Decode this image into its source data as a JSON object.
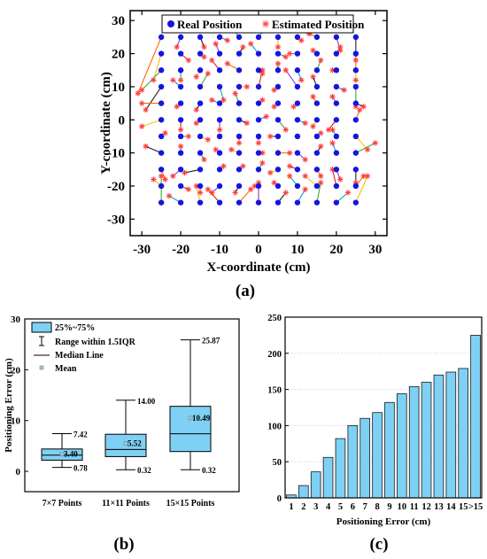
{
  "chart_data": [
    {
      "id": "a",
      "type": "scatter",
      "panel_label": "(a)",
      "xlabel": "X-coordinate (cm)",
      "ylabel": "Y-coordinate (cm)",
      "xlim": [
        -33,
        33
      ],
      "ylim": [
        -35,
        33
      ],
      "xticks": [
        -30,
        -20,
        -10,
        0,
        10,
        20,
        30
      ],
      "yticks": [
        -30,
        -20,
        -10,
        0,
        10,
        20,
        30
      ],
      "legend": {
        "placement": "top-center",
        "entries": [
          "Real Position",
          "Estimated Position"
        ]
      },
      "grid": {
        "start": -25,
        "end": 25,
        "step": 5
      },
      "colors": {
        "real": "#1515e0",
        "estimated": "#ff3b3b",
        "axes": "#000000"
      },
      "line_colors": [
        "#ff6a00",
        "#1f8fe0",
        "#f5c400",
        "#8a3cc8",
        "#3faa3a",
        "#e02020",
        "#202020",
        "#00b0b0"
      ],
      "series": [
        {
          "name": "Real Position",
          "x": [
            -25,
            -20,
            -15,
            -10,
            -5,
            0,
            5,
            10,
            15,
            20,
            25,
            -25,
            -20,
            -15,
            -10,
            -5,
            0,
            5,
            10,
            15,
            20,
            25,
            -25,
            -20,
            -15,
            -10,
            -5,
            0,
            5,
            10,
            15,
            20,
            25,
            -25,
            -20,
            -15,
            -10,
            -5,
            0,
            5,
            10,
            15,
            20,
            25,
            -25,
            -20,
            -15,
            -10,
            -5,
            0,
            5,
            10,
            15,
            20,
            25,
            -25,
            -20,
            -15,
            -10,
            -5,
            0,
            5,
            10,
            15,
            20,
            25,
            -25,
            -20,
            -15,
            -10,
            -5,
            0,
            5,
            10,
            15,
            20,
            25,
            -25,
            -20,
            -15,
            -10,
            -5,
            0,
            5,
            10,
            15,
            20,
            25,
            -25,
            -20,
            -15,
            -10,
            -5,
            0,
            5,
            10,
            15,
            20,
            25,
            -25,
            -20,
            -15,
            -10,
            -5,
            0,
            5,
            10,
            15,
            20,
            25,
            -25,
            -20,
            -15,
            -10,
            -5,
            0,
            5,
            10,
            15,
            20,
            25
          ],
          "y": [
            25,
            25,
            25,
            25,
            25,
            25,
            25,
            25,
            25,
            25,
            25,
            20,
            20,
            20,
            20,
            20,
            20,
            20,
            20,
            20,
            20,
            20,
            15,
            15,
            15,
            15,
            15,
            15,
            15,
            15,
            15,
            15,
            15,
            10,
            10,
            10,
            10,
            10,
            10,
            10,
            10,
            10,
            10,
            10,
            5,
            5,
            5,
            5,
            5,
            5,
            5,
            5,
            5,
            5,
            5,
            0,
            0,
            0,
            0,
            0,
            0,
            0,
            0,
            0,
            0,
            0,
            -5,
            -5,
            -5,
            -5,
            -5,
            -5,
            -5,
            -5,
            -5,
            -5,
            -5,
            -10,
            -10,
            -10,
            -10,
            -10,
            -10,
            -10,
            -10,
            -10,
            -10,
            -10,
            -15,
            -15,
            -15,
            -15,
            -15,
            -15,
            -15,
            -15,
            -15,
            -15,
            -15,
            -20,
            -20,
            -20,
            -20,
            -20,
            -20,
            -20,
            -20,
            -20,
            -20,
            -20,
            -25,
            -25,
            -25,
            -25,
            -25,
            -25,
            -25,
            -25,
            -25,
            -25,
            -25
          ]
        },
        {
          "name": "Estimated Position",
          "x": [
            -31,
            -21,
            -14,
            -8,
            -7,
            2,
            5,
            11,
            13,
            21,
            25,
            -27,
            -18,
            -14,
            -11,
            -4,
            -2,
            7,
            8,
            14,
            21,
            25,
            -30,
            -20,
            -16,
            -12,
            -8,
            1,
            5,
            11,
            16,
            19,
            25,
            -29,
            -22,
            -13,
            -9,
            -3,
            1,
            4,
            7,
            14,
            22,
            25,
            -30,
            -21,
            -16,
            -12,
            -6,
            1,
            4,
            9,
            14,
            19,
            27,
            -30,
            -20,
            -16,
            -10,
            -3,
            2,
            7,
            12,
            14,
            18,
            26,
            -24,
            -18,
            -13,
            -10,
            -5,
            0,
            3,
            10,
            16,
            19,
            28,
            -29,
            -20,
            -14,
            -11,
            -7,
            1,
            8,
            12,
            16,
            19,
            30,
            -24,
            -22,
            -19,
            -9,
            -4,
            1,
            3,
            8,
            16,
            21,
            25,
            -27,
            -18,
            -15,
            -12,
            -6,
            -1,
            4,
            8,
            12,
            19,
            27,
            -25,
            -23,
            -16,
            -13,
            -2,
            0,
            7,
            12,
            16,
            23,
            28
          ],
          "y": [
            8,
            22,
            22,
            24,
            28,
            28,
            22,
            24,
            26,
            21,
            18,
            12,
            18,
            19,
            23,
            22,
            23,
            19,
            20,
            21,
            22,
            15,
            9,
            12,
            13,
            18,
            17,
            14,
            17,
            12,
            18,
            15,
            12,
            3,
            12,
            14,
            6,
            10,
            15,
            9,
            15,
            13,
            9,
            4,
            5,
            4,
            3,
            6,
            8,
            6,
            4,
            4,
            7,
            7,
            4,
            -2,
            -3,
            -1,
            -3,
            -1,
            1,
            -3,
            -1,
            -2,
            -3,
            3,
            -4,
            -5,
            -6,
            -5,
            -7,
            -7,
            -5,
            -5,
            -4,
            -3,
            -9,
            -8,
            -8,
            -12,
            -9,
            -9,
            -10,
            -10,
            -12,
            -8,
            -7,
            -7,
            -18,
            -17,
            -16,
            -14,
            -14,
            -13,
            -16,
            -14,
            -17,
            -18,
            -19,
            -18,
            -21,
            -22,
            -22,
            -22,
            -20,
            -19,
            -17,
            -17,
            -15,
            -17,
            -17,
            -23,
            -20,
            -21,
            -21,
            -19,
            -22,
            -21,
            -19,
            -22,
            -17
          ]
        }
      ]
    },
    {
      "id": "b",
      "type": "box",
      "panel_label": "(b)",
      "ylabel": "Positioning Error (cm)",
      "ylim": [
        -4,
        30
      ],
      "yticks": [
        0,
        10,
        20,
        30
      ],
      "categories": [
        "7×7 Points",
        "11×11 Points",
        "15×15 Points"
      ],
      "boxes": [
        {
          "min": 0.78,
          "q1": 2.2,
          "median": 3.2,
          "q3": 4.4,
          "max": 7.42,
          "mean": 3.4
        },
        {
          "min": 0.32,
          "q1": 2.9,
          "median": 4.3,
          "q3": 7.3,
          "max": 14.0,
          "mean": 5.52
        },
        {
          "min": 0.32,
          "q1": 3.9,
          "median": 7.4,
          "q3": 12.8,
          "max": 25.87,
          "mean": 10.49
        }
      ],
      "labels": [
        {
          "max": "7.42",
          "mean": "3.40",
          "min": "0.78"
        },
        {
          "max": "14.00",
          "mean": "5.52",
          "min": "0.32"
        },
        {
          "max": "25.87",
          "mean": "10.49",
          "min": "0.32"
        }
      ],
      "legend": {
        "placement": "top-left",
        "entries": [
          "25%~75%",
          "Range within 1.5IQR",
          "Median Line",
          "Mean"
        ]
      },
      "colors": {
        "box": "#7fd0f5",
        "axes": "#000000",
        "mean": "#8fcbe6"
      }
    },
    {
      "id": "c",
      "type": "bar",
      "panel_label": "(c)",
      "xlabel": "Positioning Error (cm)",
      "ylim": [
        0,
        250
      ],
      "yticks": [
        0,
        50,
        100,
        150,
        200,
        250
      ],
      "categories": [
        "1",
        "2",
        "3",
        "4",
        "5",
        "6",
        "7",
        "8",
        "9",
        "10",
        "11",
        "12",
        "13",
        "14",
        "15",
        ">15"
      ],
      "values": [
        4,
        17,
        36,
        56,
        82,
        100,
        110,
        118,
        132,
        144,
        154,
        160,
        170,
        174,
        179,
        225
      ],
      "grid": true,
      "colors": {
        "bar": "#7fd0f5",
        "bar_edge": "#1a1a1a",
        "grid": "#d8d8d8"
      }
    }
  ]
}
